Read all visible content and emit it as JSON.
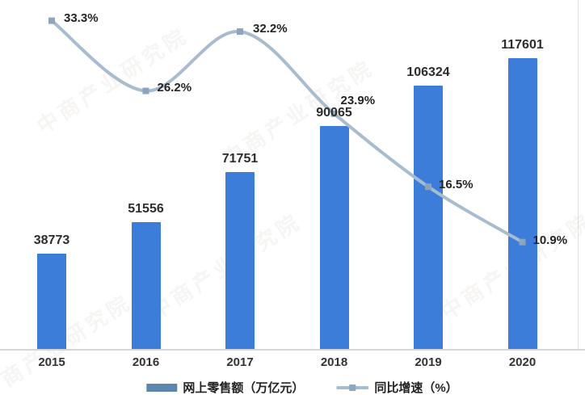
{
  "watermark": {
    "text": "中商产业研究院"
  },
  "chart_data": {
    "type": "combo-bar-line",
    "title": "",
    "categories": [
      "2015",
      "2016",
      "2017",
      "2018",
      "2019",
      "2020"
    ],
    "series": [
      {
        "name": "网上零售额（万亿元）",
        "type": "bar",
        "values": [
          38773,
          51556,
          71751,
          90065,
          106324,
          117601
        ],
        "labels": [
          "38773",
          "51556",
          "71751",
          "90065",
          "106324",
          "117601"
        ],
        "color": "#3B7DD8"
      },
      {
        "name": "同比增速（%）",
        "type": "line",
        "values": [
          33.3,
          26.2,
          32.2,
          23.9,
          16.5,
          10.9
        ],
        "labels": [
          "33.3%",
          "26.2%",
          "32.2%",
          "23.9%",
          "16.5%",
          "10.9%"
        ],
        "color": "#A8BCCF",
        "marker_color": "#8CA4BD"
      }
    ],
    "value_axis": {
      "min": 0,
      "max": 141000,
      "visible": false
    },
    "percent_axis": {
      "min": 0,
      "max": 35.4,
      "visible": false
    },
    "x_axis": {
      "line_color": "#D5D5D5",
      "label_color": "#333333"
    },
    "legend_position": "bottom",
    "grid": false,
    "data_label_color": "#2D2D2D"
  }
}
